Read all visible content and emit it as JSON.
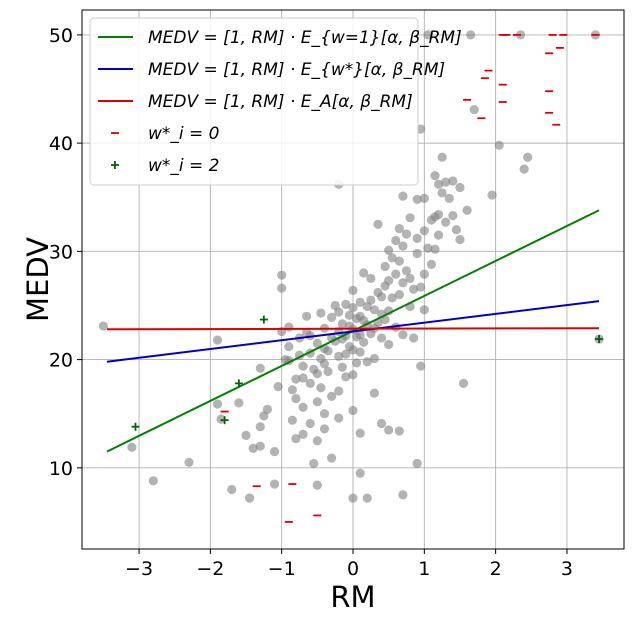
{
  "chart_data": {
    "type": "scatter",
    "xlabel": "RM",
    "ylabel": "MEDV",
    "xlim": [
      -3.8,
      3.8
    ],
    "ylim": [
      2.5,
      52.3
    ],
    "x_ticks": [
      -3,
      -2,
      -1,
      0,
      1,
      2,
      3
    ],
    "x_tick_labels": [
      "−3",
      "−2",
      "−1",
      "0",
      "1",
      "2",
      "3"
    ],
    "y_ticks": [
      10,
      20,
      30,
      40,
      50
    ],
    "y_tick_labels": [
      "10",
      "20",
      "30",
      "40",
      "50"
    ],
    "grid": true,
    "legend_position": "top-left",
    "colors": {
      "scatter": "#808080",
      "ew1": "#008000",
      "ewstar": "#0000cc",
      "ea": "#dd0000",
      "w0": "#dd0000",
      "w2": "#006400"
    },
    "legend": [
      {
        "key": "ew1",
        "label": "MEDV = [1, RM] · E_{w=1}[α, β_RM]",
        "marker": "line"
      },
      {
        "key": "ewstar",
        "label": "MEDV = [1, RM] · E_{w*}[α, β_RM]",
        "marker": "line"
      },
      {
        "key": "ea",
        "label": "MEDV = [1, RM] · E_A[α, β_RM]",
        "marker": "line"
      },
      {
        "key": "w0",
        "label": "w*_i = 0",
        "marker": "minus"
      },
      {
        "key": "w2",
        "label": "w*_i = 2",
        "marker": "plus"
      }
    ],
    "lines": [
      {
        "key": "ew1",
        "x": [
          -3.45,
          3.45
        ],
        "y": [
          11.5,
          33.8
        ]
      },
      {
        "key": "ewstar",
        "x": [
          -3.45,
          3.45
        ],
        "y": [
          19.8,
          25.4
        ]
      },
      {
        "key": "ea",
        "x": [
          -3.45,
          3.45
        ],
        "y": [
          22.8,
          22.9
        ]
      }
    ],
    "points": [
      [
        -3.5,
        23.1
      ],
      [
        -3.1,
        11.9
      ],
      [
        -2.8,
        8.8
      ],
      [
        -2.3,
        10.5
      ],
      [
        -1.9,
        21.8
      ],
      [
        -1.9,
        15.9
      ],
      [
        -1.85,
        14.5
      ],
      [
        -1.7,
        8.0
      ],
      [
        -1.6,
        16.0
      ],
      [
        -1.5,
        13.0
      ],
      [
        -1.45,
        7.2
      ],
      [
        -1.4,
        11.8
      ],
      [
        -1.3,
        12.0
      ],
      [
        -1.3,
        13.8
      ],
      [
        -1.3,
        19.2
      ],
      [
        -1.25,
        14.8
      ],
      [
        -1.2,
        15.4
      ],
      [
        -1.1,
        8.5
      ],
      [
        -1.1,
        11.5
      ],
      [
        -1.05,
        17.5
      ],
      [
        -1.0,
        27.8
      ],
      [
        -1.0,
        26.6
      ],
      [
        -1.0,
        22.6
      ],
      [
        -0.95,
        20.0
      ],
      [
        -0.9,
        23.0
      ],
      [
        -0.9,
        21.2
      ],
      [
        -0.9,
        19.9
      ],
      [
        -0.85,
        17.2
      ],
      [
        -0.85,
        14.4
      ],
      [
        -0.8,
        18.2
      ],
      [
        -0.8,
        16.4
      ],
      [
        -0.8,
        12.7
      ],
      [
        -0.75,
        22.0
      ],
      [
        -0.75,
        20.4
      ],
      [
        -0.7,
        19.4
      ],
      [
        -0.7,
        18.3
      ],
      [
        -0.7,
        15.6
      ],
      [
        -0.7,
        13.1
      ],
      [
        -0.65,
        24.0
      ],
      [
        -0.65,
        22.5
      ],
      [
        -0.6,
        22.2
      ],
      [
        -0.6,
        20.6
      ],
      [
        -0.6,
        17.8
      ],
      [
        -0.6,
        14.1
      ],
      [
        -0.55,
        10.4
      ],
      [
        -0.55,
        19.1
      ],
      [
        -0.5,
        21.5
      ],
      [
        -0.5,
        18.7
      ],
      [
        -0.5,
        16.1
      ],
      [
        -0.5,
        12.5
      ],
      [
        -0.5,
        8.4
      ],
      [
        -0.45,
        24.3
      ],
      [
        -0.45,
        20.1
      ],
      [
        -0.45,
        17.4
      ],
      [
        -0.4,
        22.9
      ],
      [
        -0.4,
        21.0
      ],
      [
        -0.4,
        19.6
      ],
      [
        -0.4,
        15.0
      ],
      [
        -0.4,
        13.6
      ],
      [
        -0.35,
        20.8
      ],
      [
        -0.35,
        18.9
      ],
      [
        -0.3,
        23.9
      ],
      [
        -0.3,
        22.0
      ],
      [
        -0.3,
        16.6
      ],
      [
        -0.3,
        10.9
      ],
      [
        -0.25,
        25.0
      ],
      [
        -0.25,
        21.7
      ],
      [
        -0.2,
        24.4
      ],
      [
        -0.2,
        22.6
      ],
      [
        -0.2,
        20.3
      ],
      [
        -0.2,
        17.1
      ],
      [
        -0.2,
        14.6
      ],
      [
        -0.2,
        36.2
      ],
      [
        -0.15,
        23.3
      ],
      [
        -0.15,
        21.9
      ],
      [
        -0.15,
        19.3
      ],
      [
        -0.1,
        25.1
      ],
      [
        -0.1,
        22.2
      ],
      [
        -0.1,
        20.5
      ],
      [
        -0.1,
        18.4
      ],
      [
        -0.05,
        24.1
      ],
      [
        -0.05,
        23.1
      ],
      [
        -0.05,
        21.2
      ],
      [
        0.0,
        26.4
      ],
      [
        0.0,
        24.8
      ],
      [
        0.0,
        22.8
      ],
      [
        0.0,
        20.9
      ],
      [
        0.0,
        18.6
      ],
      [
        0.0,
        15.3
      ],
      [
        0.0,
        7.2
      ],
      [
        0.05,
        23.8
      ],
      [
        0.05,
        22.1
      ],
      [
        0.05,
        19.7
      ],
      [
        0.1,
        25.3
      ],
      [
        0.1,
        24.0
      ],
      [
        0.1,
        22.3
      ],
      [
        0.1,
        20.7
      ],
      [
        0.1,
        13.2
      ],
      [
        0.1,
        9.5
      ],
      [
        0.15,
        28.0
      ],
      [
        0.15,
        23.6
      ],
      [
        0.15,
        21.6
      ],
      [
        0.2,
        24.9
      ],
      [
        0.2,
        23.2
      ],
      [
        0.2,
        19.8
      ],
      [
        0.2,
        7.2
      ],
      [
        0.25,
        27.5
      ],
      [
        0.25,
        25.5
      ],
      [
        0.25,
        22.4
      ],
      [
        0.3,
        24.6
      ],
      [
        0.3,
        22.9
      ],
      [
        0.3,
        20.1
      ],
      [
        0.3,
        16.9
      ],
      [
        0.35,
        32.5
      ],
      [
        0.35,
        26.2
      ],
      [
        0.35,
        23.4
      ],
      [
        0.4,
        25.8
      ],
      [
        0.4,
        24.2
      ],
      [
        0.4,
        22.0
      ],
      [
        0.4,
        14.1
      ],
      [
        0.45,
        28.6
      ],
      [
        0.45,
        26.8
      ],
      [
        0.45,
        23.7
      ],
      [
        0.5,
        30.1
      ],
      [
        0.5,
        27.3
      ],
      [
        0.5,
        24.5
      ],
      [
        0.5,
        21.4
      ],
      [
        0.5,
        13.5
      ],
      [
        0.55,
        29.4
      ],
      [
        0.55,
        25.7
      ],
      [
        0.6,
        31.0
      ],
      [
        0.6,
        27.9
      ],
      [
        0.6,
        23.0
      ],
      [
        0.65,
        32.1
      ],
      [
        0.65,
        29.1
      ],
      [
        0.65,
        26.0
      ],
      [
        0.65,
        13.4
      ],
      [
        0.7,
        35.1
      ],
      [
        0.7,
        30.5
      ],
      [
        0.7,
        27.1
      ],
      [
        0.7,
        22.3
      ],
      [
        0.7,
        7.5
      ],
      [
        0.75,
        31.6
      ],
      [
        0.75,
        28.2
      ],
      [
        0.8,
        33.1
      ],
      [
        0.8,
        27.5
      ],
      [
        0.8,
        24.9
      ],
      [
        0.85,
        26.5
      ],
      [
        0.85,
        22.0
      ],
      [
        0.9,
        34.8
      ],
      [
        0.9,
        31.2
      ],
      [
        0.9,
        29.8
      ],
      [
        0.9,
        10.4
      ],
      [
        0.95,
        41.3
      ],
      [
        0.95,
        26.7
      ],
      [
        0.95,
        19.4
      ],
      [
        1.0,
        34.9
      ],
      [
        1.0,
        31.9
      ],
      [
        1.0,
        27.9
      ],
      [
        1.0,
        24.6
      ],
      [
        1.05,
        50.0
      ],
      [
        1.05,
        30.3
      ],
      [
        1.1,
        32.9
      ],
      [
        1.1,
        28.8
      ],
      [
        1.15,
        37.0
      ],
      [
        1.15,
        33.2
      ],
      [
        1.15,
        30.2
      ],
      [
        1.2,
        36.2
      ],
      [
        1.2,
        33.4
      ],
      [
        1.2,
        31.5
      ],
      [
        1.25,
        38.7
      ],
      [
        1.25,
        35.4
      ],
      [
        1.3,
        36.4
      ],
      [
        1.3,
        32.7
      ],
      [
        1.35,
        34.9
      ],
      [
        1.4,
        36.5
      ],
      [
        1.4,
        33.3
      ],
      [
        1.45,
        32.0
      ],
      [
        1.5,
        35.9
      ],
      [
        1.5,
        31.1
      ],
      [
        1.55,
        17.8
      ],
      [
        1.6,
        33.8
      ],
      [
        1.65,
        50.0
      ],
      [
        1.7,
        43.1
      ],
      [
        1.95,
        35.2
      ],
      [
        2.05,
        39.8
      ],
      [
        2.35,
        50.0
      ],
      [
        2.4,
        37.6
      ],
      [
        2.45,
        38.7
      ],
      [
        3.45,
        21.9
      ],
      [
        3.4,
        50.0
      ]
    ],
    "markers_w0": [
      [
        -1.8,
        15.2
      ],
      [
        -1.35,
        8.3
      ],
      [
        -0.85,
        8.5
      ],
      [
        -0.9,
        5.0
      ],
      [
        -0.5,
        5.6
      ],
      [
        1.6,
        44.0
      ],
      [
        1.8,
        42.3
      ],
      [
        1.85,
        46.0
      ],
      [
        1.9,
        46.7
      ],
      [
        2.1,
        45.4
      ],
      [
        2.1,
        43.8
      ],
      [
        2.1,
        50.0
      ],
      [
        2.15,
        50.0
      ],
      [
        2.3,
        50.0
      ],
      [
        2.75,
        48.3
      ],
      [
        2.75,
        44.8
      ],
      [
        2.75,
        42.8
      ],
      [
        2.8,
        50.0
      ],
      [
        2.85,
        41.7
      ],
      [
        2.9,
        48.8
      ],
      [
        2.95,
        50.0
      ],
      [
        3.4,
        50.0
      ]
    ],
    "markers_w2": [
      [
        -3.05,
        13.8
      ],
      [
        -1.8,
        14.4
      ],
      [
        -1.6,
        17.8
      ],
      [
        -1.25,
        23.7
      ],
      [
        3.45,
        21.9
      ]
    ]
  }
}
